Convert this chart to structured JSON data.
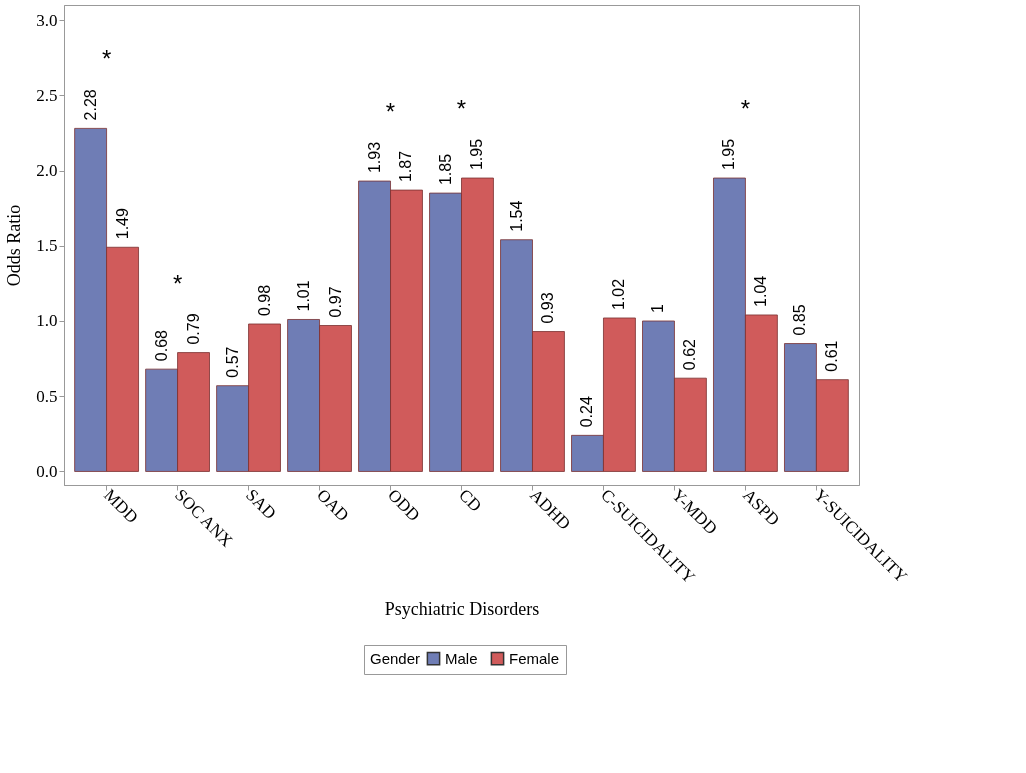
{
  "chart_data": {
    "type": "bar",
    "xlabel": "Psychiatric Disorders",
    "ylabel": "Odds Ratio",
    "legend_title": "Gender",
    "legend": "bottom",
    "grid": false,
    "categories": [
      "MDD",
      "SOC ANX",
      "SAD",
      "OAD",
      "ODD",
      "CD",
      "ADHD",
      "C-SUICIDALITY",
      "Y-MDD",
      "ASPD",
      "Y-SUICIDALITY"
    ],
    "series": [
      {
        "name": "Male",
        "color": "#6f7db5",
        "values": [
          2.28,
          0.68,
          0.57,
          1.01,
          1.93,
          1.85,
          1.54,
          0.24,
          1,
          1.95,
          0.85
        ],
        "value_labels": [
          "2.28",
          "0.68",
          "0.57",
          "1.01",
          "1.93",
          "1.85",
          "1.54",
          "0.24",
          "1",
          "1.95",
          "0.85"
        ]
      },
      {
        "name": "Female",
        "color": "#d05b5b",
        "values": [
          1.49,
          0.79,
          0.98,
          0.97,
          1.87,
          1.95,
          0.93,
          1.02,
          0.62,
          1.04,
          0.61
        ],
        "value_labels": [
          "1.49",
          "0.79",
          "0.98",
          "0.97",
          "1.87",
          "1.95",
          "0.93",
          "1.02",
          "0.62",
          "1.04",
          "0.61"
        ]
      }
    ],
    "ylim": [
      -0.09,
      3.1
    ],
    "yticks": [
      {
        "value": 0,
        "label": "0.0"
      },
      {
        "value": 0.5,
        "label": "0.5"
      },
      {
        "value": 1,
        "label": "1.0"
      },
      {
        "value": 1.5,
        "label": "1.5"
      },
      {
        "value": 2,
        "label": "2.0"
      },
      {
        "value": 2.5,
        "label": "2.5"
      },
      {
        "value": 3,
        "label": "3.0"
      }
    ],
    "annotations": [
      "*",
      "*",
      "*",
      "*",
      "*"
    ]
  }
}
